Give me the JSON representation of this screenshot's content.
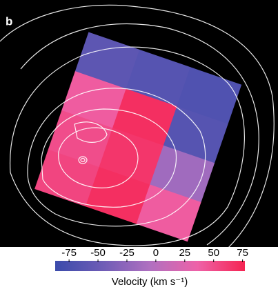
{
  "panel_label": "b",
  "chart_data": {
    "type": "velocity-map",
    "values": [
      [
        -60,
        -65,
        -70
      ],
      [
        40,
        70,
        -65
      ],
      [
        50,
        65,
        -15
      ],
      [
        55,
        70,
        40
      ]
    ],
    "colormap": [
      "#3b4bab",
      "#6e5cb6",
      "#b070c0",
      "#ee62a8",
      "#f52452"
    ],
    "colorbar_label": "Velocity (km s⁻¹)",
    "xlim": [
      -87,
      77
    ],
    "xticks": [
      -75,
      -50,
      -25,
      0,
      25,
      50,
      75
    ]
  }
}
